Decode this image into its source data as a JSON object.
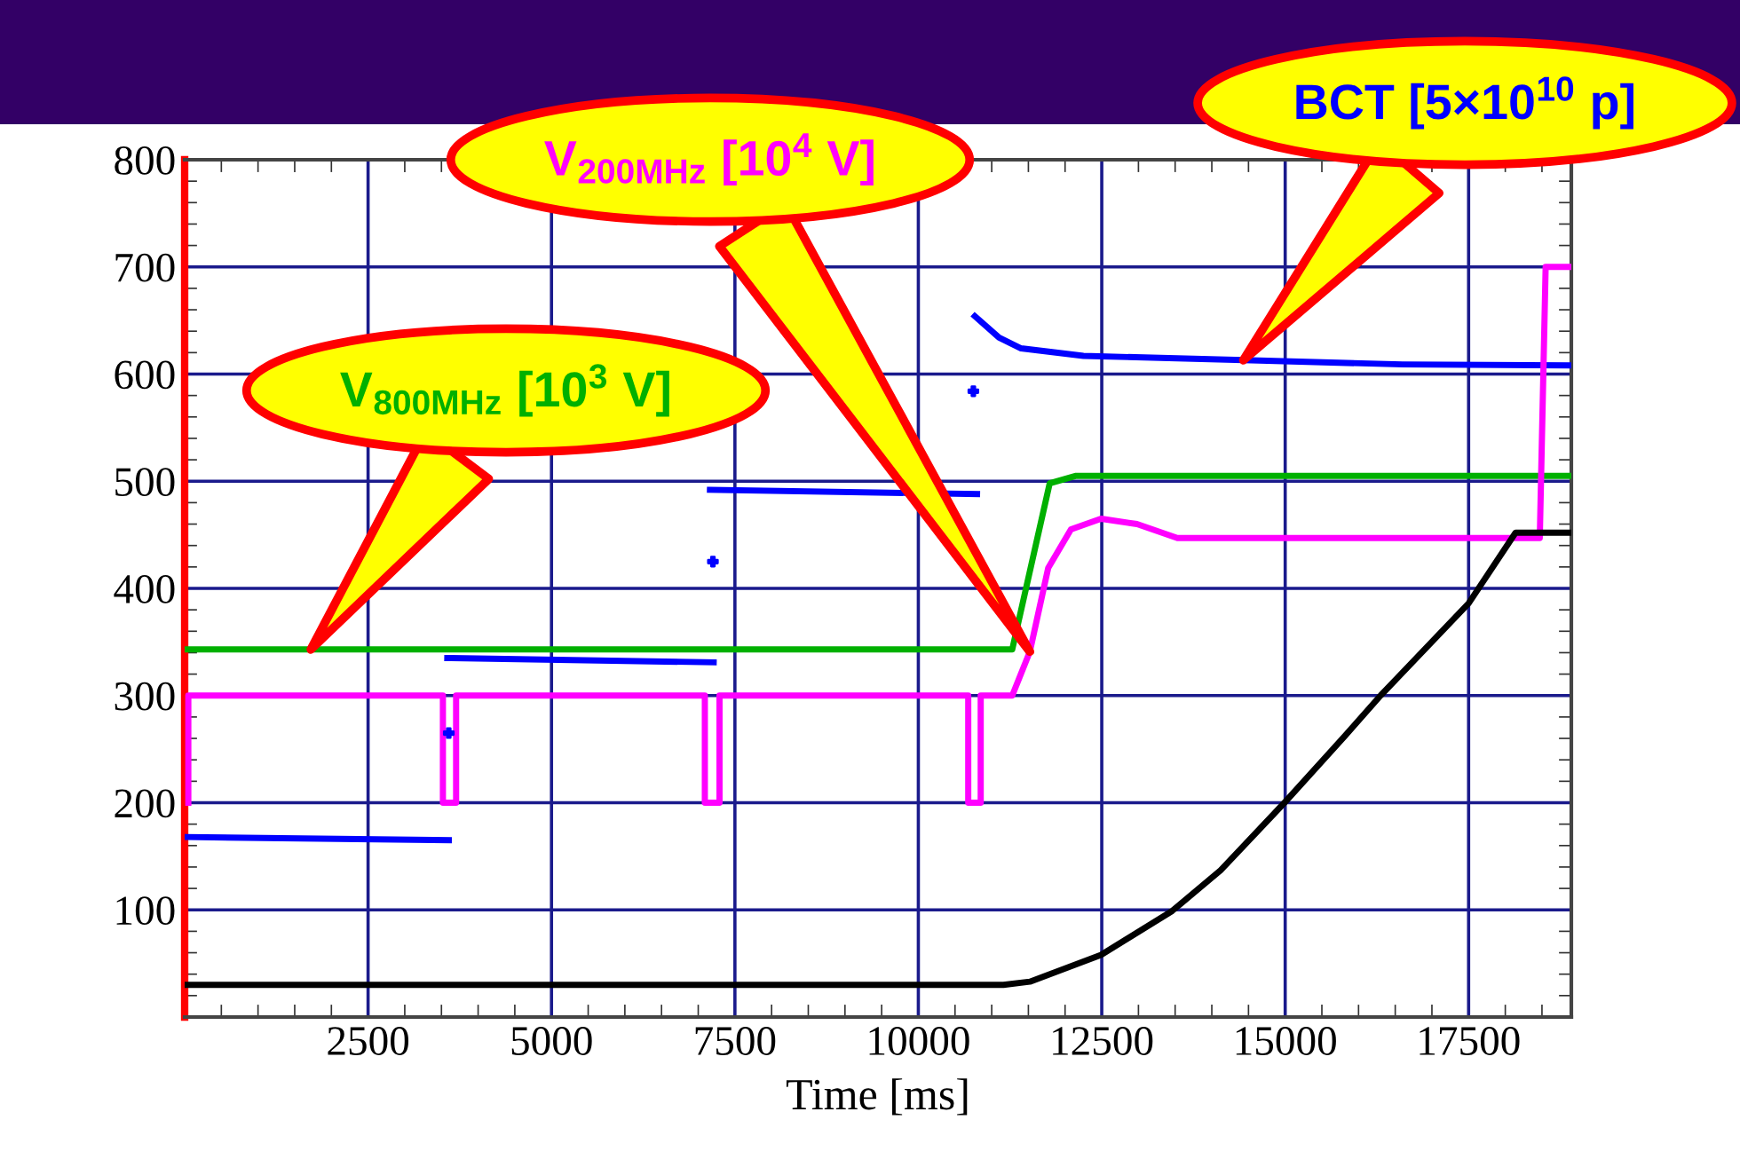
{
  "chart_data": {
    "type": "line",
    "xlabel": "Time [ms]",
    "xlim": [
      0,
      18900
    ],
    "xticks": [
      {
        "value": 0,
        "label": null
      },
      2500,
      5000,
      7500,
      10000,
      12500,
      15000,
      17500
    ],
    "ylim": [
      0,
      800
    ],
    "yticks": [
      {
        "value": 0,
        "label": null
      },
      100,
      200,
      300,
      400,
      500,
      600,
      700,
      800
    ],
    "grid": true,
    "legend": false,
    "marker": "none",
    "line_style": "solid",
    "series": [
      {
        "color": "#0000ff",
        "x": [
          0,
          3600
        ],
        "values": [
          168,
          165
        ]
      },
      {
        "color": "#0000ff",
        "x": [
          3580,
          7210
        ],
        "values": [
          335,
          331
        ]
      },
      {
        "color": "#0000ff",
        "x": [
          7160,
          10800
        ],
        "values": [
          492,
          488
        ]
      },
      {
        "name": "BCT [5×10$^{10}$ p]",
        "color": "#0000ff",
        "x": [
          10770,
          11100,
          11400,
          12250,
          14430,
          16600,
          18900
        ],
        "values": [
          654,
          634,
          624,
          617,
          613,
          609,
          608
        ]
      },
      {
        "type": "scatter",
        "marker": "cross",
        "color": "#0000ff",
        "x": [
          3600,
          7200,
          10750
        ],
        "values": [
          265,
          425,
          584
        ]
      },
      {
        "name": "V$_{800MHz}$ [10$^{3}$ V]",
        "color": "#00b000",
        "x": [
          0,
          11280,
          11790,
          12150,
          18900
        ],
        "values": [
          343,
          343,
          498,
          505,
          505
        ]
      },
      {
        "name": "V$_{200MHz}$ [10$^{4}$ V]",
        "color": "#ff00ff",
        "x": [
          50,
          50,
          3520,
          3520,
          3700,
          3700,
          7090,
          7090,
          7290,
          7290,
          10680,
          10680,
          10850,
          10850,
          11280,
          11520,
          11770,
          12080,
          12490,
          12980,
          13530,
          18470,
          18550,
          18900
        ],
        "values": [
          200,
          300,
          300,
          200,
          200,
          300,
          300,
          200,
          200,
          300,
          300,
          200,
          200,
          300,
          300,
          341,
          419,
          455,
          465,
          460,
          447,
          447,
          700,
          700
        ]
      },
      {
        "color": "#000000",
        "x": [
          0,
          11160,
          11520,
          12490,
          13460,
          14120,
          14990,
          15810,
          16300,
          17500,
          18140,
          18900
        ],
        "values": [
          30,
          30,
          33,
          58,
          99,
          137,
          200,
          262,
          300,
          386,
          452,
          452
        ]
      }
    ]
  }
}
